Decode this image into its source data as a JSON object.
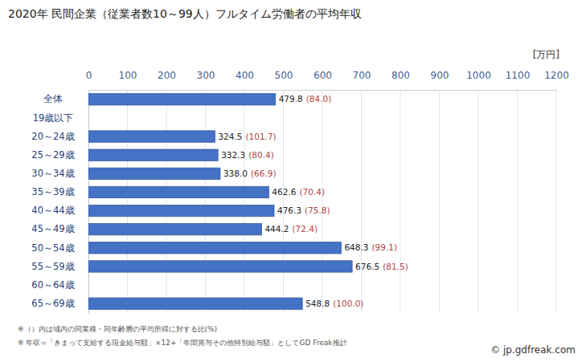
{
  "chart_data": {
    "type": "bar",
    "orientation": "horizontal",
    "title": "2020年 民間企業（従業者数10～99人）フルタイム労働者の平均年収",
    "xlabel": "[万円]",
    "categories": [
      "全体",
      "19歳以下",
      "20～24歳",
      "25～29歳",
      "30～34歳",
      "35～39歳",
      "40～44歳",
      "45～49歳",
      "50～54歳",
      "55～59歳",
      "60～64歳",
      "65～69歳"
    ],
    "values": [
      479.8,
      null,
      324.5,
      332.3,
      338.0,
      462.6,
      476.3,
      444.2,
      648.3,
      676.5,
      null,
      548.8
    ],
    "value_labels": [
      "479.8",
      null,
      "324.5",
      "332.3",
      "338.0",
      "462.6",
      "476.3",
      "444.2",
      "648.3",
      "676.5",
      null,
      "548.8"
    ],
    "ratios": [
      84.0,
      null,
      101.7,
      80.4,
      66.9,
      70.4,
      75.8,
      72.4,
      99.1,
      81.5,
      null,
      100.0
    ],
    "ratio_labels": [
      "(84.0)",
      null,
      "(101.7)",
      "(80.4)",
      "(66.9)",
      "(70.4)",
      "(75.8)",
      "(72.4)",
      "(99.1)",
      "(81.5)",
      null,
      "(100.0)"
    ],
    "color": "#4472c4",
    "xlim": [
      0,
      1200
    ],
    "xticks": [
      0,
      100,
      200,
      300,
      400,
      500,
      600,
      700,
      800,
      900,
      1000,
      1100,
      1200
    ],
    "grid": true,
    "data_labels": true,
    "notes": [
      "※（）内は域内の同業種・同年齢層の平均所得に対する比(%)",
      "※ 年収=「きまって支給する現金給与額」×12+「年間賞与その他特別給与額」としてGD Freak推計"
    ],
    "source": "© jp.gdfreak.com"
  }
}
